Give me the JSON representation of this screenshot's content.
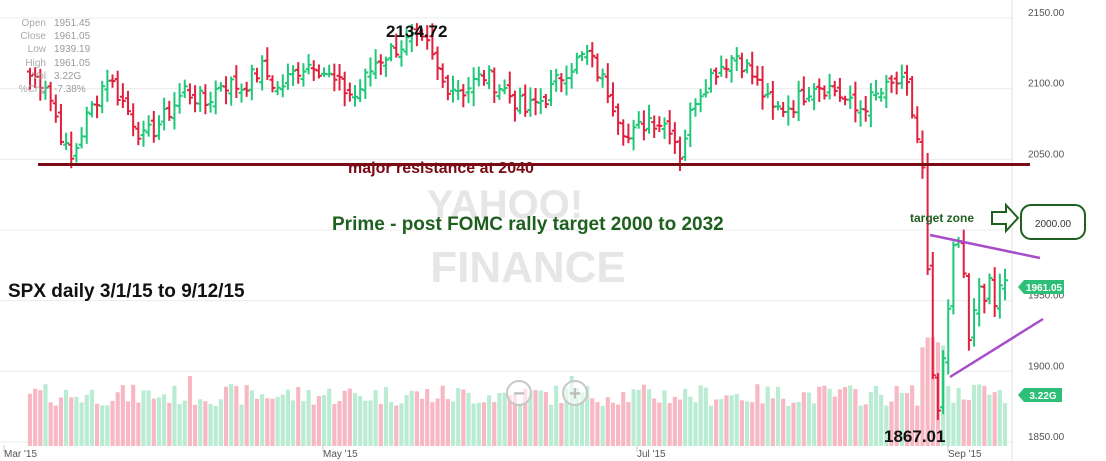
{
  "info_panel": [
    {
      "label": "Open",
      "value": "1951.45"
    },
    {
      "label": "Close",
      "value": "1961.05"
    },
    {
      "label": "Low",
      "value": "1939.19"
    },
    {
      "label": "High",
      "value": "1961.05"
    },
    {
      "label": "Vol",
      "value": "3.22G"
    },
    {
      "label": "%Chg",
      "value": "-7.38%"
    }
  ],
  "watermark": {
    "line1": "YAHOO!",
    "line2": "FINANCE"
  },
  "zoom_controls": {
    "zoom_out": "−",
    "zoom_in": "+"
  },
  "annotations": {
    "peak_label": "2134.72",
    "trough_label": "1867.01",
    "resistance_label": "major resistance at 2040",
    "prime_label": "Prime - post FOMC rally target  2000 to 2032",
    "series_label": "SPX daily 3/1/15 to 9/12/15",
    "target_zone_label": "target zone",
    "target_zone_value": "2000.00"
  },
  "price_tag": {
    "value": "1961.05",
    "color": "#2dbf78"
  },
  "volume_tag": {
    "value": "3.22G",
    "color": "#2dbf78"
  },
  "colors": {
    "up": "#1fc878",
    "down": "#e0203c",
    "vol_up": "#b9ecd2",
    "vol_down": "#f7b8c3",
    "resistance": "#7a0a14",
    "resistance_text": "#7a0a14",
    "prime_text": "#1f5f1f",
    "triangle": "#a64dc8",
    "target": "#1f5f1f"
  },
  "chart_data": {
    "type": "ohlc",
    "title": "",
    "xlabel": "",
    "ylabel": "",
    "ylim": [
      1845,
      2160
    ],
    "y_ticks": [
      "2150.00",
      "2100.00",
      "2050.00",
      "2000.00",
      "1950.00",
      "1900.00",
      "1850.00"
    ],
    "x_ticks": [
      "Mar '15",
      "May '15",
      "Jul '15",
      "Sep '15"
    ],
    "resistance_level": 2040,
    "target_range": [
      2000,
      2032
    ],
    "peak": 2134.72,
    "trough": 1867.01,
    "last_close": 1961.05,
    "grid": true,
    "legend": "none",
    "price_anchors": [
      [
        0,
        2105
      ],
      [
        3,
        2100
      ],
      [
        7,
        2052
      ],
      [
        8,
        2045
      ],
      [
        11,
        2075
      ],
      [
        15,
        2105
      ],
      [
        19,
        2080
      ],
      [
        22,
        2060
      ],
      [
        26,
        2075
      ],
      [
        30,
        2095
      ],
      [
        34,
        2085
      ],
      [
        37,
        2100
      ],
      [
        41,
        2097
      ],
      [
        45,
        2110
      ],
      [
        48,
        2095
      ],
      [
        52,
        2110
      ],
      [
        55,
        2115
      ],
      [
        59,
        2100
      ],
      [
        63,
        2090
      ],
      [
        67,
        2115
      ],
      [
        71,
        2125
      ],
      [
        74,
        2130
      ],
      [
        77,
        2125
      ],
      [
        80,
        2100
      ],
      [
        84,
        2095
      ],
      [
        88,
        2105
      ],
      [
        92,
        2095
      ],
      [
        96,
        2080
      ],
      [
        100,
        2090
      ],
      [
        104,
        2110
      ],
      [
        108,
        2120
      ],
      [
        112,
        2095
      ],
      [
        116,
        2060
      ],
      [
        120,
        2075
      ],
      [
        124,
        2070
      ],
      [
        126,
        2050
      ],
      [
        129,
        2090
      ],
      [
        133,
        2110
      ],
      [
        137,
        2120
      ],
      [
        140,
        2105
      ],
      [
        144,
        2080
      ],
      [
        148,
        2085
      ],
      [
        152,
        2100
      ],
      [
        156,
        2095
      ],
      [
        160,
        2080
      ],
      [
        164,
        2090
      ],
      [
        168,
        2100
      ],
      [
        170,
        2095
      ],
      [
        171,
        2078
      ],
      [
        172,
        2060
      ],
      [
        173,
        2040
      ],
      [
        174,
        1968
      ],
      [
        175,
        1893
      ],
      [
        176,
        1868
      ],
      [
        177,
        1905
      ],
      [
        178,
        1940
      ],
      [
        179,
        1985
      ],
      [
        180,
        1988
      ],
      [
        181,
        1965
      ],
      [
        182,
        1915
      ],
      [
        183,
        1935
      ],
      [
        184,
        1950
      ],
      [
        185,
        1945
      ],
      [
        186,
        1955
      ],
      [
        187,
        1940
      ],
      [
        188,
        1952
      ],
      [
        189,
        1961
      ]
    ],
    "bar_count": 190
  }
}
